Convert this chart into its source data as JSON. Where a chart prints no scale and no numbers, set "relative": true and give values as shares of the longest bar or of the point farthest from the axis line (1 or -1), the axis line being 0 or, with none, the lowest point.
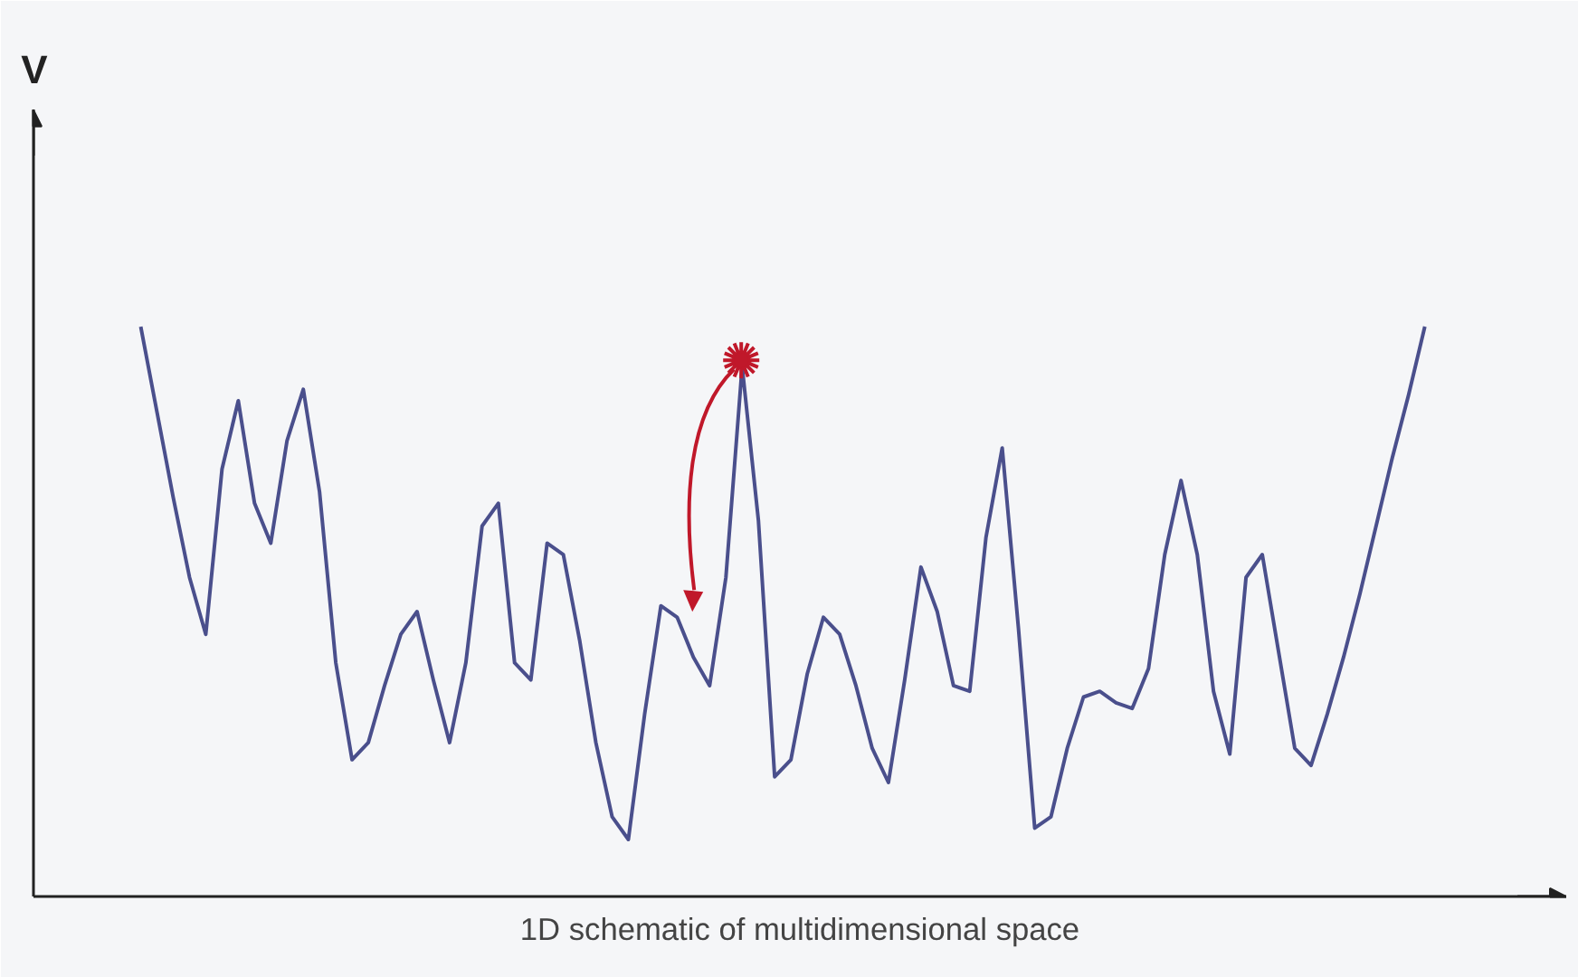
{
  "chart_data": {
    "type": "line",
    "relative": true,
    "annotations": [
      "V"
    ],
    "xlabel": "1D schematic of multidimensional space",
    "grid": false,
    "categories": [
      null,
      null,
      null,
      null,
      null,
      null,
      null,
      null,
      null,
      null,
      null,
      null,
      null,
      null,
      null,
      null,
      null,
      null,
      null,
      null,
      null,
      null,
      null,
      null,
      null,
      null,
      null,
      null,
      null,
      null,
      null,
      null,
      null,
      null,
      null,
      null,
      null,
      null,
      null,
      null,
      null,
      null,
      null,
      null,
      null,
      null,
      null,
      null,
      null,
      null,
      null,
      null,
      null,
      null,
      null,
      null,
      null,
      null,
      null,
      null,
      null,
      null,
      null,
      null,
      null,
      null,
      null,
      null,
      null,
      null,
      null,
      null,
      null,
      null,
      null,
      null,
      null,
      null,
      null,
      null
    ],
    "series": [
      {
        "color": "#4a4f8c",
        "values": [
          1.0,
          0.85,
          0.7,
          0.56,
          0.46,
          0.75,
          0.87,
          0.69,
          0.62,
          0.8,
          0.89,
          0.71,
          0.41,
          0.24,
          0.27,
          0.37,
          0.46,
          0.5,
          0.38,
          0.27,
          0.41,
          0.65,
          0.69,
          0.41,
          0.38,
          0.62,
          0.6,
          0.45,
          0.27,
          0.14,
          0.1,
          0.32,
          0.51,
          0.49,
          0.42,
          0.37,
          0.56,
          0.93,
          0.66,
          0.21,
          0.24,
          0.39,
          0.49,
          0.46,
          0.37,
          0.26,
          0.2,
          0.38,
          0.578,
          0.5,
          0.37,
          0.36,
          0.63,
          0.787,
          0.47,
          0.12,
          0.14,
          0.26,
          0.35,
          0.36,
          0.34,
          0.33,
          0.4,
          0.6,
          0.73,
          0.6,
          0.36,
          0.25,
          0.56,
          0.6,
          0.43,
          0.26,
          0.23,
          0.32,
          0.42,
          0.53,
          0.65,
          0.77,
          0.88,
          1.0
        ]
      }
    ]
  }
}
